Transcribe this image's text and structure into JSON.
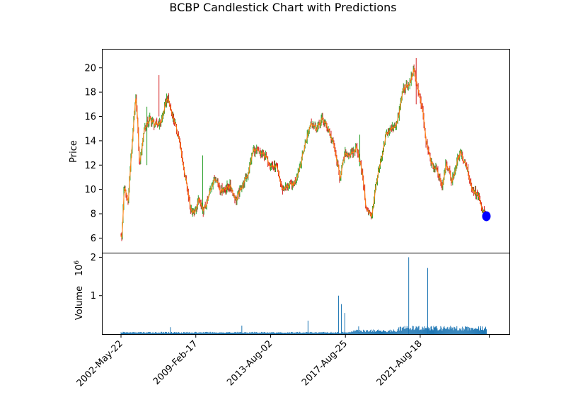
{
  "chart_data": {
    "type": "candlestick",
    "title": "BCBP Candlestick Chart with Predictions",
    "price_panel": {
      "ylabel": "Price",
      "ylim": [
        4.8,
        21.5
      ],
      "yticks": [
        6,
        8,
        10,
        12,
        14,
        16,
        18,
        20
      ],
      "series": [
        {
          "name": "",
          "color": "#2ca02c",
          "role": "candle-up"
        },
        {
          "name": "",
          "color": "#d62728",
          "role": "candle-down"
        },
        {
          "name": "",
          "color": "#ff7f0e",
          "role": "prediction-line"
        }
      ],
      "trend_points": [
        [
          0,
          6.3
        ],
        [
          0.1,
          5.6
        ],
        [
          0.5,
          10.2
        ],
        [
          1.2,
          9.0
        ],
        [
          2.0,
          14.5
        ],
        [
          2.6,
          17.8
        ],
        [
          3.2,
          12.0
        ],
        [
          4.0,
          15.0
        ],
        [
          5.0,
          15.8
        ],
        [
          6.0,
          15.3
        ],
        [
          7.0,
          15.6
        ],
        [
          8.0,
          17.6
        ],
        [
          9.0,
          16.0
        ],
        [
          10.0,
          14.3
        ],
        [
          10.8,
          12.0
        ],
        [
          11.5,
          10.0
        ],
        [
          12.0,
          8.5
        ],
        [
          12.8,
          8.0
        ],
        [
          13.5,
          9.2
        ],
        [
          14.2,
          8.2
        ],
        [
          15.0,
          9.0
        ],
        [
          15.8,
          10.5
        ],
        [
          16.5,
          11.0
        ],
        [
          17.2,
          10.0
        ],
        [
          18.0,
          10.1
        ],
        [
          19.0,
          10.3
        ],
        [
          20.0,
          9.1
        ],
        [
          21.0,
          10.3
        ],
        [
          22.0,
          11.2
        ],
        [
          23.0,
          13.3
        ],
        [
          24.0,
          13.0
        ],
        [
          25.0,
          12.8
        ],
        [
          26.0,
          12.0
        ],
        [
          27.0,
          11.8
        ],
        [
          28.0,
          10.0
        ],
        [
          29.0,
          10.3
        ],
        [
          30.0,
          10.4
        ],
        [
          31.0,
          11.8
        ],
        [
          32.0,
          13.8
        ],
        [
          33.0,
          15.6
        ],
        [
          34.0,
          15.0
        ],
        [
          35.0,
          15.8
        ],
        [
          36.0,
          15.0
        ],
        [
          37.0,
          13.5
        ],
        [
          38.0,
          11.0
        ],
        [
          39.0,
          13.0
        ],
        [
          40.0,
          12.8
        ],
        [
          41.0,
          13.5
        ],
        [
          42.0,
          11.0
        ],
        [
          42.6,
          8.3
        ],
        [
          43.5,
          7.8
        ],
        [
          44.5,
          11.0
        ],
        [
          45.5,
          13.0
        ],
        [
          46.0,
          14.5
        ],
        [
          47.0,
          15.0
        ],
        [
          48.0,
          15.5
        ],
        [
          48.5,
          16.8
        ],
        [
          49.0,
          18.3
        ],
        [
          50.0,
          18.5
        ],
        [
          50.8,
          19.8
        ],
        [
          51.5,
          18.5
        ],
        [
          52.5,
          16.0
        ],
        [
          53.0,
          13.8
        ],
        [
          54.0,
          12.0
        ],
        [
          55.0,
          11.5
        ],
        [
          55.8,
          10.3
        ],
        [
          56.5,
          12.3
        ],
        [
          57.5,
          10.6
        ],
        [
          58.5,
          12.5
        ],
        [
          59.0,
          13.0
        ],
        [
          60.0,
          12.0
        ],
        [
          61.0,
          10.0
        ],
        [
          62.0,
          9.5
        ],
        [
          62.8,
          8.2
        ],
        [
          63.5,
          7.8
        ]
      ],
      "prediction_marker": {
        "x": 63.5,
        "y": 7.8,
        "color": "#0000ff",
        "label": ""
      }
    },
    "volume_panel": {
      "ylabel": "Volume",
      "offset_label": "1e6",
      "yticks": [
        1,
        2
      ],
      "ylim": [
        0,
        2.1
      ],
      "color": "#1f77b4",
      "spikes": [
        [
          8.6,
          0.18
        ],
        [
          21.0,
          0.22
        ],
        [
          32.5,
          0.35
        ],
        [
          37.8,
          1.0
        ],
        [
          38.3,
          0.78
        ],
        [
          38.9,
          0.55
        ],
        [
          41.3,
          0.2
        ],
        [
          50.0,
          2.0
        ],
        [
          53.3,
          1.72
        ]
      ]
    },
    "x_axis": {
      "tick_labels": [
        "2002-May-22",
        "2009-Feb-17",
        "2013-Aug-02",
        "2017-Aug-25",
        "2021-Aug-18",
        ""
      ],
      "tick_positions": [
        0,
        13,
        26,
        39,
        52,
        64
      ],
      "range": [
        -3.2,
        67.5
      ]
    }
  }
}
